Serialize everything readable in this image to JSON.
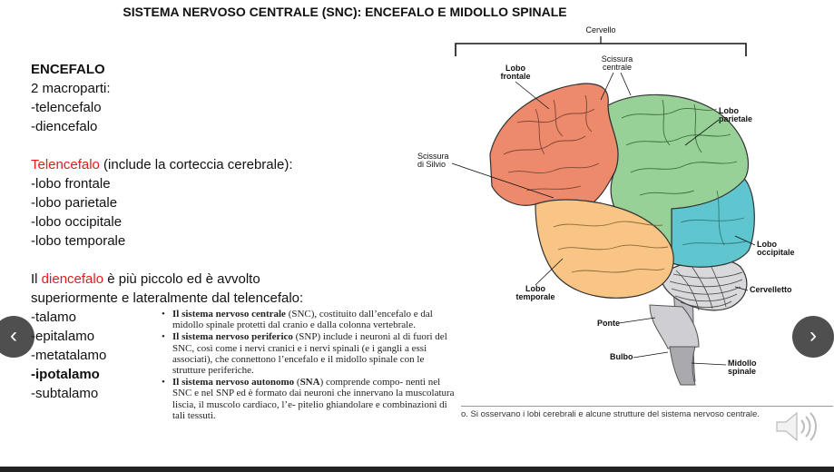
{
  "slide": {
    "title": "SISTEMA NERVOSO CENTRALE (SNC): ENCEFALO E MIDOLLO SPINALE"
  },
  "left": {
    "heading": "ENCEFALO",
    "macro": "2 macroparti:",
    "telencefalo": "-telencefalo",
    "diencefalo": "-diencefalo",
    "telencefalo_red": "Telencefalo",
    "telencefalo_rest": " (include la corteccia cerebrale):",
    "lobes": [
      "-lobo frontale",
      "-lobo parietale",
      "-lobo occipitale",
      "-lobo temporale"
    ],
    "dien_pre": "Il ",
    "dien_red": "diencefalo",
    "dien_post": " è più piccolo ed è avvolto",
    "dien_line2": "superiormente e lateralmente dal telencefalo:",
    "parts": [
      "-talamo",
      "-epitalamo",
      "-metatalamo",
      "-ipotalamo",
      "-subtalamo"
    ]
  },
  "book": {
    "i1_bold": "Il sistema nervoso centrale",
    "i1_text": " (SNC), costituito dall’encefalo e dal midollo spinale protetti dal cranio e dalla colonna vertebrale.",
    "i2_bold": "Il sistema nervoso periferico",
    "i2_text": " (SNP) include i neuroni al di fuori del SNC, così come i nervi cranici e i nervi spinali (e i gangli a essi associati), che connettono l’encefalo e il midollo spinale con le strutture periferiche.",
    "i3_bold": "Il sistema nervoso autonomo",
    "i3_open": " (",
    "i3_abbr": "SNA",
    "i3_text": ") comprende compo- nenti nel SNC e nel SNP ed è formato dai neuroni che innervano la muscolatura liscia, il muscolo cardiaco, l’e- pitelio ghiandolare e combinazioni di tali tessuti."
  },
  "brain": {
    "cervello": "Cervello",
    "scissura_centrale_1": "Scissura",
    "scissura_centrale_2": "centrale",
    "lobo_frontale_1": "Lobo",
    "lobo_frontale_2": "frontale",
    "lobo_parietale_1": "Lobo",
    "lobo_parietale_2": "parietale",
    "scissura_silvio_1": "Scissura",
    "scissura_silvio_2": "di Silvio",
    "lobo_occipitale_1": "Lobo",
    "lobo_occipitale_2": "occipitale",
    "lobo_temporale_1": "Lobo",
    "lobo_temporale_2": "temporale",
    "cervelletto": "Cervelletto",
    "ponte": "Ponte",
    "bulbo": "Bulbo",
    "midollo_1": "Midollo",
    "midollo_2": "spinale"
  },
  "caption": "o. Si osservano i lobi cerebrali e alcune strutture del sistema nervoso centrale.",
  "nav": {
    "prev": "‹",
    "next": "›"
  },
  "colors": {
    "frontal": "#ee8a6c",
    "parietal": "#97d197",
    "occipital": "#5fc6cf",
    "temporal": "#f8c584",
    "accent_red": "#e31b1b"
  }
}
